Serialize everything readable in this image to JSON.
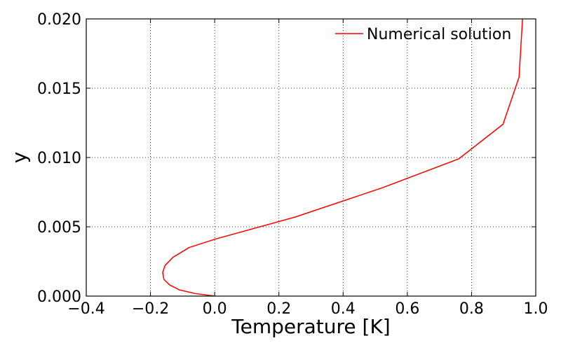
{
  "chart_data": {
    "type": "line",
    "title": "",
    "xlabel": "Temperature [K]",
    "ylabel": "y",
    "xlim": [
      -0.4,
      1.0
    ],
    "ylim": [
      0.0,
      0.02
    ],
    "grid": true,
    "legend_position": "top-right",
    "x_ticks": [
      -0.4,
      -0.2,
      0.0,
      0.2,
      0.4,
      0.6,
      0.8,
      1.0
    ],
    "x_tick_labels": [
      "−0.4",
      "−0.2",
      "0.0",
      "0.2",
      "0.4",
      "0.6",
      "0.8",
      "1.0"
    ],
    "y_ticks": [
      0.0,
      0.005,
      0.01,
      0.015,
      0.02
    ],
    "y_tick_labels": [
      "0.000",
      "0.005",
      "0.010",
      "0.015",
      "0.020"
    ],
    "series": [
      {
        "name": "Numerical solution",
        "color": "#ff0000",
        "points": [
          [
            0.0,
            0.0
          ],
          [
            -0.06,
            0.00018
          ],
          [
            -0.11,
            0.00045
          ],
          [
            -0.14,
            0.0008
          ],
          [
            -0.158,
            0.0012
          ],
          [
            -0.162,
            0.0017
          ],
          [
            -0.155,
            0.0022
          ],
          [
            -0.13,
            0.0028
          ],
          [
            -0.08,
            0.0035
          ],
          [
            0.0,
            0.0041
          ],
          [
            0.25,
            0.0057
          ],
          [
            0.52,
            0.0078
          ],
          [
            0.76,
            0.0099
          ],
          [
            0.898,
            0.0124
          ],
          [
            0.948,
            0.0158
          ],
          [
            0.96,
            0.0205
          ]
        ]
      }
    ]
  }
}
